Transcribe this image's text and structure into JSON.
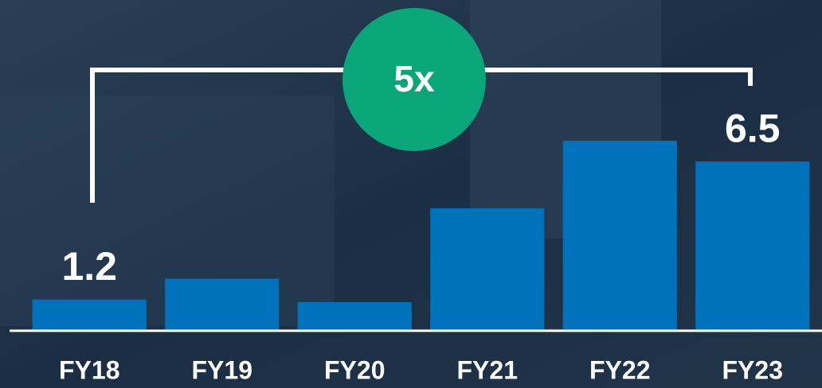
{
  "chart_data": {
    "type": "bar",
    "categories": [
      "FY18",
      "FY19",
      "FY20",
      "FY21",
      "FY22",
      "FY23"
    ],
    "values": [
      1.2,
      2.0,
      1.1,
      4.7,
      7.3,
      6.5
    ],
    "value_labels": [
      "1.2",
      null,
      null,
      null,
      null,
      "6.5"
    ],
    "color": "#0071bb",
    "ylim": [
      0,
      8
    ],
    "annotation": "5x",
    "annotation_color": "#0aa67a"
  }
}
